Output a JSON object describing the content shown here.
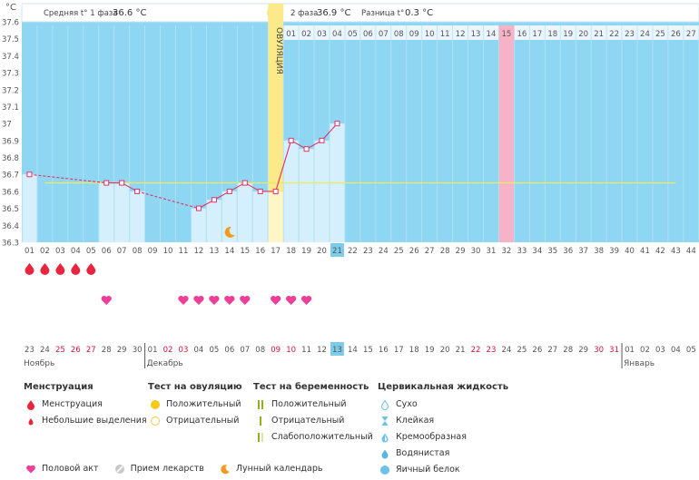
{
  "header": {
    "unit": "°C",
    "phase1_label": "Средняя t° 1 фаза",
    "phase1_value": "36.6 °C",
    "phase2_label": "2 фаза",
    "phase2_value": "36.9 °C",
    "diff_label": "Разница t°",
    "diff_value": "0.3 °C",
    "ovulation_label": "ОВУЛЯЦИЯ"
  },
  "colors": {
    "plot_bg": "#8fd6f2",
    "bar_fill": "#d6effc",
    "line": "#e0336a",
    "coverline": "#e9e86a",
    "ovulation": "#fbe98a",
    "pink_day": "#f6b3c8",
    "highlight_day": "#7ccbea",
    "heart": "#ee3f98",
    "drop": "#e8253f",
    "red_date": "#d4143c"
  },
  "chart_data": {
    "type": "line",
    "title": "",
    "ylabel": "°C",
    "ylim": [
      36.3,
      37.6
    ],
    "yticks": [
      "36.3",
      "36.4",
      "36.5",
      "36.6",
      "36.7",
      "36.8",
      "36.9",
      "37",
      "37.1",
      "37.2",
      "37.3",
      "37.4",
      "37.5",
      "37.6"
    ],
    "cycle_days": [
      "01",
      "02",
      "03",
      "04",
      "05",
      "06",
      "07",
      "08",
      "09",
      "10",
      "11",
      "12",
      "13",
      "14",
      "15",
      "16",
      "17",
      "18",
      "19",
      "20",
      "21",
      "22",
      "23",
      "24",
      "25",
      "26",
      "27",
      "28",
      "29",
      "30",
      "31",
      "32",
      "33",
      "34",
      "35",
      "36",
      "37",
      "38",
      "39",
      "40",
      "41",
      "42",
      "43",
      "44"
    ],
    "phase2_days": [
      "01",
      "02",
      "03",
      "04",
      "05",
      "06",
      "07",
      "08",
      "09",
      "10",
      "11",
      "12",
      "13",
      "14",
      "15",
      "16",
      "17",
      "18",
      "19",
      "20",
      "21",
      "22",
      "23",
      "24",
      "25",
      "26",
      "27"
    ],
    "dates": [
      "23",
      "24",
      "25",
      "26",
      "27",
      "28",
      "29",
      "30",
      "01",
      "02",
      "03",
      "04",
      "05",
      "06",
      "07",
      "08",
      "09",
      "10",
      "11",
      "12",
      "13",
      "14",
      "15",
      "16",
      "17",
      "18",
      "19",
      "20",
      "21",
      "22",
      "23",
      "24",
      "25",
      "26",
      "27",
      "28",
      "29",
      "30",
      "31",
      "01",
      "02",
      "03",
      "04",
      "05"
    ],
    "red_date_indices": [
      2,
      3,
      4,
      9,
      10,
      16,
      17,
      29,
      30,
      37,
      38
    ],
    "months": [
      {
        "label": "Ноябрь",
        "start_index": 0
      },
      {
        "label": "Декабрь",
        "start_index": 8
      },
      {
        "label": "Январь",
        "start_index": 39
      }
    ],
    "series": [
      {
        "x": [
          1,
          6,
          7,
          8,
          12,
          13,
          14,
          15,
          16,
          17,
          18,
          19,
          20,
          21
        ],
        "y": [
          36.7,
          36.65,
          36.65,
          36.6,
          36.5,
          36.55,
          36.6,
          36.65,
          36.6,
          36.6,
          36.9,
          36.85,
          36.9,
          37.0
        ]
      }
    ],
    "coverline": 36.65,
    "ovulation_day": 17,
    "pink_day": 32,
    "current_day": 21,
    "moon_day": 14,
    "menstruation_days": [
      1,
      2,
      3,
      4,
      5
    ],
    "intercourse_days": [
      6,
      11,
      12,
      13,
      14,
      15,
      17,
      18,
      19
    ]
  },
  "legend": {
    "menstruation": {
      "title": "Менструация",
      "items": [
        "Менструация",
        "Небольшие выделения"
      ]
    },
    "ovulation_test": {
      "title": "Тест на овуляцию",
      "items": [
        "Положительный",
        "Отрицательный"
      ]
    },
    "pregnancy_test": {
      "title": "Тест на беременность",
      "items": [
        "Положительный",
        "Отрицательный",
        "Слабоположительный"
      ]
    },
    "cervical": {
      "title": "Цервикальная жидкость",
      "items": [
        "Сухо",
        "Клейкая",
        "Кремообразная",
        "Водянистая",
        "Яичный белок"
      ]
    },
    "bottom": [
      "Половой акт",
      "Прием лекарств",
      "Лунный календарь"
    ]
  }
}
